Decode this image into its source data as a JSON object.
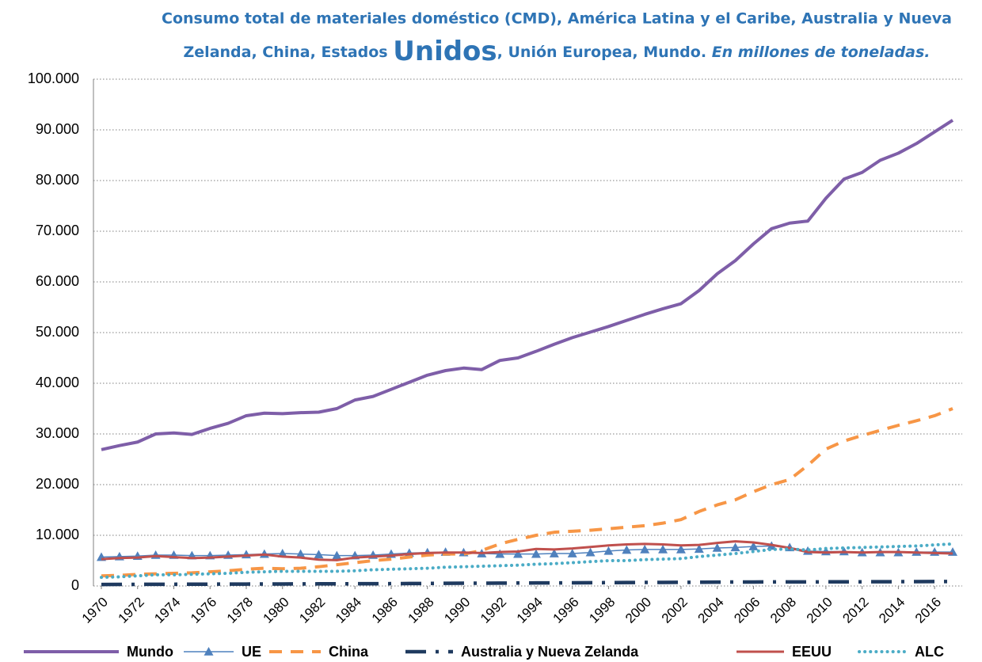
{
  "chart_data": {
    "type": "line",
    "title": [
      "Consumo total de materiales doméstico (CMD), América Latina y el Caribe, Australia y Nueva",
      "Zelanda, China, Estados",
      "Unidos",
      ", Unión Europea, Mundo."
    ],
    "subtitle": "En millones de toneladas.",
    "x": [
      1970,
      1971,
      1972,
      1973,
      1974,
      1975,
      1976,
      1977,
      1978,
      1979,
      1980,
      1981,
      1982,
      1983,
      1984,
      1985,
      1986,
      1987,
      1988,
      1989,
      1990,
      1991,
      1992,
      1993,
      1994,
      1995,
      1996,
      1997,
      1998,
      1999,
      2000,
      2001,
      2002,
      2003,
      2004,
      2005,
      2006,
      2007,
      2008,
      2009,
      2010,
      2011,
      2012,
      2013,
      2014,
      2015,
      2016,
      2017
    ],
    "xlim": [
      1970,
      2017
    ],
    "xticks": [
      1970,
      1972,
      1974,
      1976,
      1978,
      1980,
      1982,
      1984,
      1986,
      1988,
      1990,
      1992,
      1994,
      1996,
      1998,
      2000,
      2002,
      2004,
      2006,
      2008,
      2010,
      2012,
      2014,
      2016
    ],
    "ylim": [
      0,
      100000
    ],
    "yticks": [
      0,
      {
        "value": 10000,
        "label": "10.000"
      },
      {
        "value": 20000,
        "label": "20.000"
      },
      {
        "value": 30000,
        "label": "30.000"
      },
      {
        "value": 40000,
        "label": "40.000"
      },
      {
        "value": 50000,
        "label": "50.000"
      },
      {
        "value": 60000,
        "label": "60.000"
      },
      {
        "value": 70000,
        "label": "70.000"
      },
      {
        "value": 80000,
        "label": "80.000"
      },
      {
        "value": 90000,
        "label": "90.000"
      },
      {
        "value": 100000,
        "label": "100.000"
      }
    ],
    "grid": true,
    "legend": "bottom",
    "series": [
      {
        "name": "Mundo",
        "color": "#7e5ea8",
        "style": "solid",
        "values": [
          26900,
          27700,
          28400,
          30000,
          30200,
          29900,
          31100,
          32100,
          33600,
          34100,
          34000,
          34200,
          34300,
          35000,
          36700,
          37400,
          38800,
          40200,
          41600,
          42500,
          43000,
          42700,
          44500,
          45000,
          46300,
          47700,
          49000,
          50100,
          51200,
          52400,
          53600,
          54700,
          55700,
          58300,
          61600,
          64200,
          67500,
          70500,
          71600,
          72000,
          76500,
          80300,
          81600,
          84000,
          85400,
          87300,
          89600,
          91900
        ]
      },
      {
        "name": "UE",
        "color": "#4f81bd",
        "style": "solid-triangle",
        "values": [
          5700,
          5800,
          5900,
          6100,
          6100,
          6000,
          6000,
          6100,
          6200,
          6300,
          6400,
          6300,
          6200,
          6000,
          6000,
          6100,
          6300,
          6500,
          6600,
          6700,
          6600,
          6400,
          6300,
          6300,
          6300,
          6400,
          6400,
          6600,
          6900,
          7100,
          7200,
          7200,
          7200,
          7300,
          7500,
          7600,
          7800,
          7900,
          7600,
          6900,
          6800,
          6800,
          6600,
          6600,
          6600,
          6700,
          6700,
          6700
        ]
      },
      {
        "name": "China",
        "color": "#f79646",
        "style": "dash",
        "values": [
          2000,
          2100,
          2300,
          2400,
          2500,
          2600,
          2800,
          3000,
          3300,
          3500,
          3400,
          3500,
          3800,
          4200,
          4600,
          5000,
          5300,
          5700,
          6100,
          6300,
          6300,
          7000,
          8300,
          9200,
          10000,
          10600,
          10800,
          11000,
          11300,
          11600,
          11900,
          12400,
          13100,
          14700,
          16000,
          17000,
          18600,
          20000,
          21000,
          23800,
          27000,
          28600,
          29700,
          30700,
          31700,
          32600,
          33600,
          35000
        ]
      },
      {
        "name": "Australia y Nueva Zelanda",
        "color": "#1f3a5f",
        "style": "dashdot",
        "values": [
          300,
          310,
          320,
          330,
          340,
          350,
          360,
          370,
          380,
          390,
          400,
          410,
          420,
          430,
          440,
          450,
          460,
          480,
          500,
          520,
          540,
          550,
          560,
          580,
          600,
          610,
          620,
          640,
          660,
          680,
          700,
          710,
          720,
          740,
          760,
          780,
          790,
          800,
          810,
          800,
          810,
          820,
          830,
          840,
          850,
          860,
          870,
          880
        ]
      },
      {
        "name": "EEUU",
        "color": "#c0504d",
        "style": "solid-thick",
        "values": [
          5300,
          5500,
          5600,
          5900,
          5700,
          5500,
          5600,
          5800,
          6000,
          6200,
          5800,
          5600,
          5200,
          5100,
          5600,
          5800,
          6000,
          6300,
          6500,
          6600,
          6600,
          6500,
          6700,
          6800,
          7300,
          7200,
          7400,
          7700,
          8000,
          8200,
          8300,
          8200,
          8000,
          8100,
          8500,
          8800,
          8600,
          8100,
          7500,
          6700,
          6600,
          6700,
          6600,
          6700,
          6700,
          6600,
          6500,
          6400
        ]
      },
      {
        "name": "ALC",
        "color": "#4bacc6",
        "style": "dot",
        "values": [
          1700,
          1800,
          2000,
          2200,
          2200,
          2300,
          2400,
          2500,
          2700,
          2800,
          2900,
          2900,
          2900,
          2900,
          3000,
          3200,
          3300,
          3400,
          3500,
          3700,
          3800,
          3900,
          4000,
          4100,
          4300,
          4400,
          4600,
          4800,
          5000,
          5000,
          5200,
          5300,
          5400,
          5800,
          6100,
          6400,
          6800,
          7200,
          7300,
          7100,
          7400,
          7500,
          7600,
          7700,
          7800,
          7900,
          8100,
          8300
        ]
      }
    ]
  }
}
